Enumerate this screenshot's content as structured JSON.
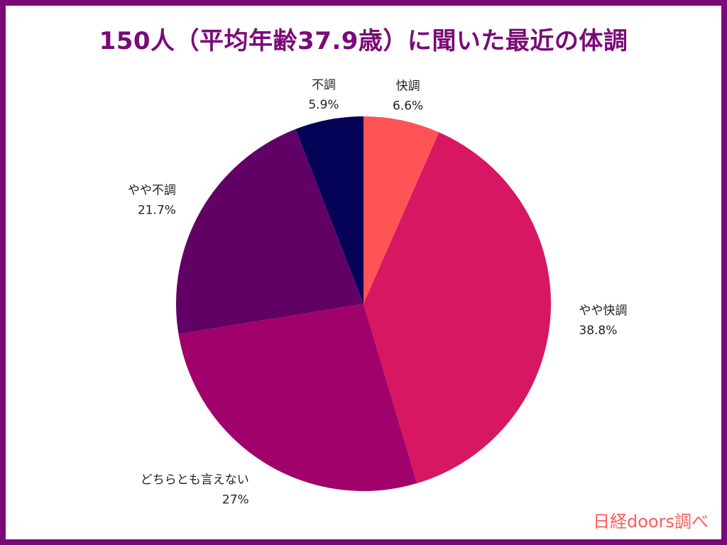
{
  "page": {
    "title": "150人（平均年齢37.9歳）に聞いた最近の体調",
    "source": "日経doors調べ"
  },
  "chart_data": {
    "type": "pie",
    "title": "150人（平均年齢37.9歳）に聞いた最近の体調",
    "categories": [
      "快調",
      "やや快調",
      "どちらとも言えない",
      "やや不調",
      "不調"
    ],
    "values": [
      6.6,
      38.8,
      27,
      21.7,
      5.9
    ],
    "value_labels": [
      "6.6%",
      "38.8%",
      "27%",
      "21.7%",
      "5.9%"
    ],
    "colors": [
      "#fe5455",
      "#d71761",
      "#a0016b",
      "#610166",
      "#040357"
    ],
    "start": "12 o'clock",
    "direction": "clockwise",
    "legend": "none (labels placed outside slices)"
  }
}
